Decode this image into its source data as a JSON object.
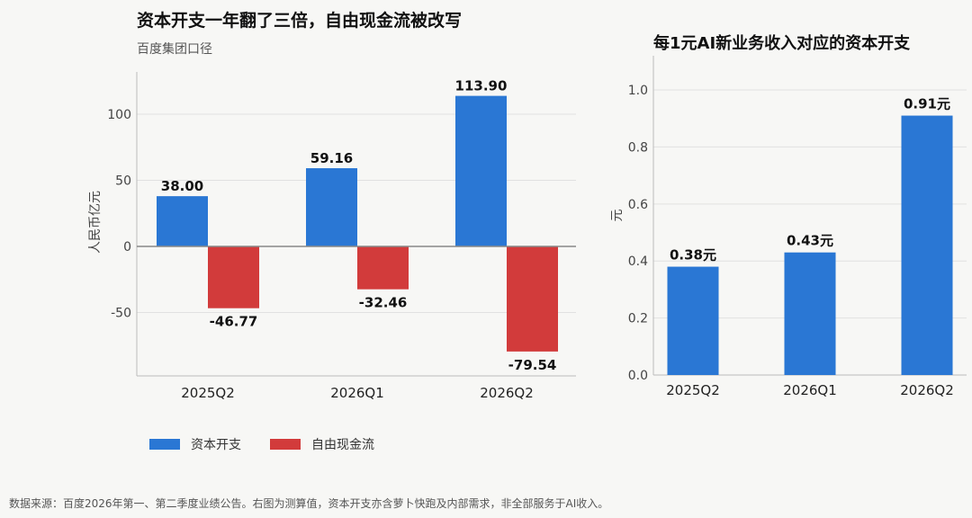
{
  "colors": {
    "capex": "#2a77d4",
    "fcf": "#d23b3b"
  },
  "left": {
    "title": "资本开支一年翻了三倍，自由现金流被改写",
    "subtitle": "百度集团口径"
  },
  "right": {
    "title": "每1元AI新业务收入对应的资本开支"
  },
  "legend": {
    "capex": "资本开支",
    "fcf": "自由现金流"
  },
  "footnote": "数据来源：百度2026年第一、第二季度业绩公告。右图为测算值，资本开支亦含萝卜快跑及内部需求，非全部服务于AI收入。",
  "chart_data": [
    {
      "type": "bar",
      "ylabel": "人民币亿元",
      "ylim": [
        -98,
        132
      ],
      "yticks": [
        -50,
        0,
        50,
        100
      ],
      "grid": true,
      "legend": "bottom-left",
      "categories": [
        "2025Q2",
        "2026Q1",
        "2026Q2"
      ],
      "series": [
        {
          "name": "资本开支",
          "values": [
            38.0,
            59.16,
            113.9
          ],
          "labels": [
            "38.00",
            "59.16",
            "113.90"
          ]
        },
        {
          "name": "自由现金流",
          "values": [
            -46.77,
            -32.46,
            -79.54
          ],
          "labels": [
            "-46.77",
            "-32.46",
            "-79.54"
          ]
        }
      ]
    },
    {
      "type": "bar",
      "ylabel": "元",
      "ylim": [
        0,
        1.12
      ],
      "yticks": [
        "0.0",
        "0.2",
        "0.4",
        "0.6",
        "0.8",
        "1.0"
      ],
      "grid": true,
      "categories": [
        "2025Q2",
        "2026Q1",
        "2026Q2"
      ],
      "values": [
        0.38,
        0.43,
        0.91
      ],
      "labels": [
        "0.38元",
        "0.43元",
        "0.91元"
      ]
    }
  ]
}
